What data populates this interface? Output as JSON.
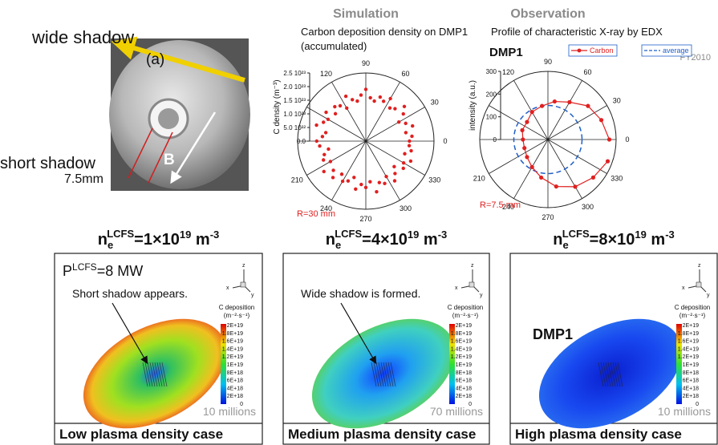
{
  "photo": {
    "wide_label": "wide shadow",
    "panel": "(a)",
    "short_label": "short shadow",
    "scale": "7.5mm",
    "point": "B"
  },
  "chart_data": [
    {
      "type": "polar_scatter",
      "heading": "Simulation",
      "title": "Carbon deposition density on DMP1",
      "subtitle": "(accumulated)",
      "ylabel": "C density (m⁻³)",
      "annotation": "R=30 mm",
      "color": "#e02020",
      "rlim": [
        0,
        2.5e+23
      ],
      "rticks": [
        {
          "value": 2.5e+23,
          "label": "2.5 10²³"
        },
        {
          "value": 2e+23,
          "label": "2.0 10²³"
        },
        {
          "value": 1.5e+23,
          "label": "1.5 10²³"
        },
        {
          "value": 1e+23,
          "label": "1.0 10²³"
        },
        {
          "value": 5e+22,
          "label": "5.0 10²²"
        },
        {
          "value": 0,
          "label": "0.0"
        }
      ],
      "theta_ticks": [
        0,
        30,
        60,
        90,
        120,
        {
          "value": 150,
          "label": null
        },
        {
          "value": 180,
          "label": null
        },
        210,
        240,
        270,
        300,
        330
      ],
      "theta": [
        0,
        6,
        12,
        18,
        24,
        30,
        36,
        42,
        48,
        54,
        60,
        66,
        72,
        78,
        84,
        90,
        96,
        102,
        108,
        114,
        120,
        126,
        132,
        138,
        144,
        150,
        156,
        162,
        168,
        174,
        180,
        186,
        192,
        198,
        204,
        210,
        216,
        222,
        228,
        234,
        240,
        246,
        252,
        258,
        264,
        270,
        276,
        282,
        288,
        294,
        300,
        306,
        312,
        318,
        324,
        330,
        336,
        342,
        348,
        354
      ],
      "values": [
        1.6e+23,
        1.7e+23,
        1.5e+23,
        1.8e+23,
        1.6e+23,
        1.4e+23,
        1.7e+23,
        1.9e+23,
        1.6e+23,
        1.5e+23,
        1.8e+23,
        1.6e+23,
        1.7e+23,
        1.5e+23,
        1.6e+23,
        1.9e+23,
        1.7e+23,
        1.5e+23,
        1.6e+23,
        1.8e+23,
        1.4e+23,
        1.6e+23,
        1.7e+23,
        1.5e+23,
        1.8e+23,
        1.6e+23,
        1.7e+23,
        1.9e+23,
        1.5e+23,
        1.6e+23,
        1.8e+23,
        1.7e+23,
        1.4e+23,
        1.6e+23,
        1.7e+23,
        1.5e+23,
        1.9e+23,
        1.6e+23,
        1.8e+23,
        1.5e+23,
        1.7e+23,
        1.6e+23,
        1.4e+23,
        1.8e+23,
        1.6e+23,
        1.7e+23,
        1.5e+23,
        1.9e+23,
        1.6e+23,
        1.7e+23,
        1.5e+23,
        1.8e+23,
        1.6e+23,
        1.4e+23,
        1.7e+23,
        1.6e+23,
        1.8e+23,
        1.5e+23,
        1.7e+23,
        1.6e+23
      ]
    },
    {
      "type": "polar_line",
      "heading": "Observation",
      "title": "Profile of characteristic X-ray by EDX",
      "label": "DMP1",
      "note": "FY2010",
      "ylabel": "intensity (a.u.)",
      "annotation": "R=7.5 mm",
      "rlim": [
        0,
        300
      ],
      "rticks": [
        300,
        200,
        100,
        0
      ],
      "theta_ticks": [
        0,
        30,
        60,
        90,
        120,
        {
          "value": 150,
          "label": null
        },
        {
          "value": 180,
          "label": null
        },
        210,
        240,
        270,
        300,
        330
      ],
      "theta": [
        0,
        20,
        40,
        60,
        80,
        100,
        120,
        140,
        160,
        180,
        200,
        220,
        240,
        260,
        280,
        300,
        320,
        340
      ],
      "series": [
        {
          "name": "Carbon",
          "color": "#e02020",
          "values": [
            270,
            250,
            230,
            190,
            170,
            150,
            140,
            120,
            120,
            110,
            110,
            120,
            140,
            170,
            210,
            240,
            260,
            280
          ]
        }
      ],
      "average": {
        "name": "average",
        "color": "#1f5fc8",
        "value": 150
      }
    }
  ],
  "cases": [
    {
      "density": {
        "n": "n",
        "sub": "e",
        "sup": "LCFS",
        "eq": "=1×10",
        "exp": "19",
        "unit": " m",
        "unit_exp": "-3"
      },
      "power": {
        "p": "P",
        "sup": "LCFS",
        "eq": "=8 MW"
      },
      "note": "Short shadow appears.",
      "count": "10 millions",
      "caption": "Low plasma density case"
    },
    {
      "density": {
        "n": "n",
        "sub": "e",
        "sup": "LCFS",
        "eq": "=4×10",
        "exp": "19",
        "unit": " m",
        "unit_exp": "-3"
      },
      "note": "Wide shadow is formed.",
      "count": "70 millions",
      "caption": "Medium plasma density case"
    },
    {
      "density": {
        "n": "n",
        "sub": "e",
        "sup": "LCFS",
        "eq": "=8×10",
        "exp": "19",
        "unit": " m",
        "unit_exp": "-3"
      },
      "label": "DMP1",
      "count": "10 millions",
      "caption": "High plasma density case"
    }
  ],
  "colorbar": {
    "title": "C deposition",
    "unit": "(m⁻²·s⁻¹)",
    "labels": [
      "2E+19",
      "1.8E+19",
      "1.6E+19",
      "1.4E+19",
      "1.2E+19",
      "1E+19",
      "8E+18",
      "6E+18",
      "4E+18",
      "2E+18",
      "0"
    ]
  },
  "triad": [
    "z",
    "x",
    "y"
  ]
}
